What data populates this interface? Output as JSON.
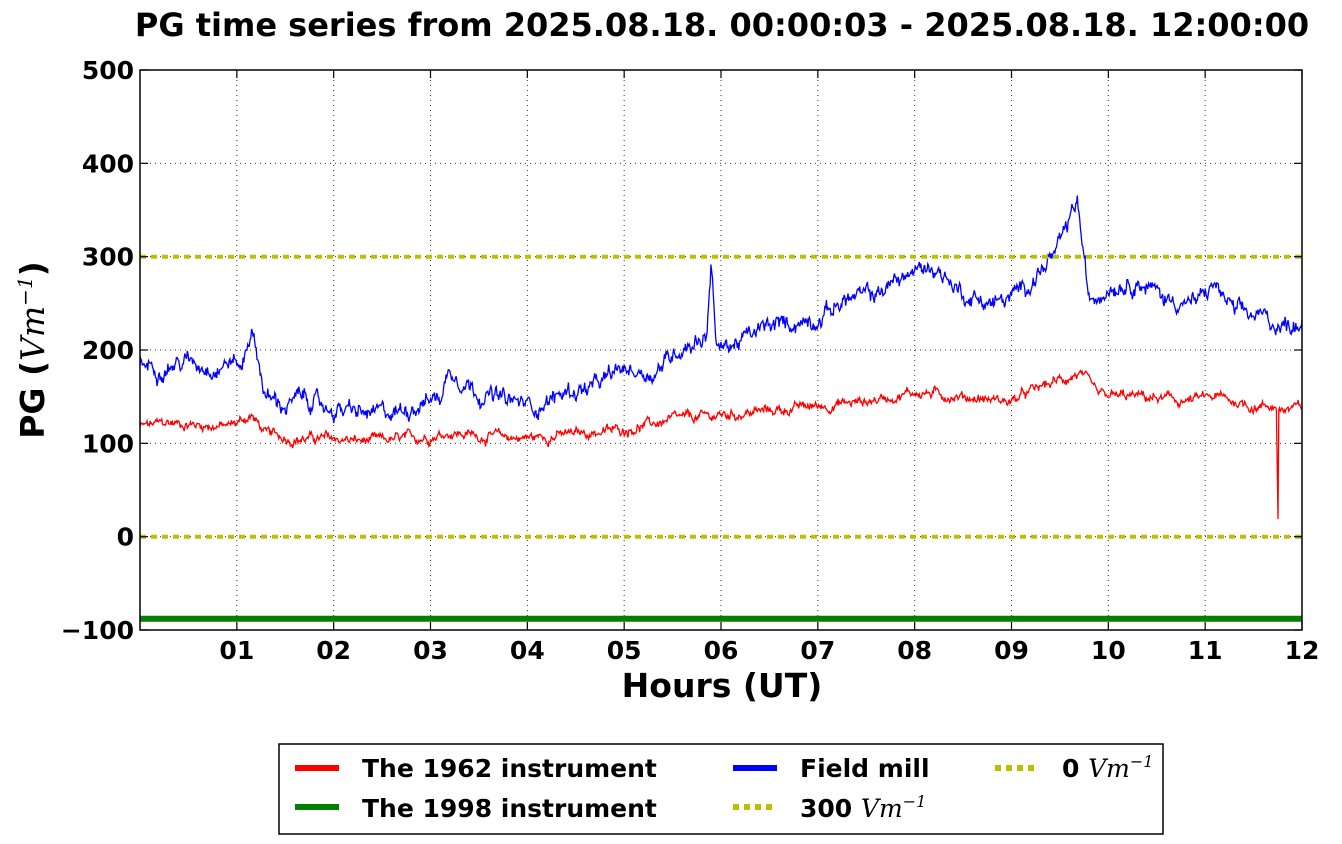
{
  "chart_data": {
    "type": "line",
    "title": "PG time series from 2025.08.18. 00:00:03 - 2025.08.18. 12:00:00",
    "xlabel": "Hours (UT)",
    "ylabel_prefix": "PG (",
    "ylabel_unit": "Vm",
    "ylabel_exp": "−1",
    "ylabel_suffix": ")",
    "xlim": [
      0,
      12
    ],
    "ylim": [
      -100,
      500
    ],
    "grid": true,
    "legend_position": "bottom-center-below",
    "x_ticks": [
      1,
      2,
      3,
      4,
      5,
      6,
      7,
      8,
      9,
      10,
      11,
      12
    ],
    "x_tick_labels": [
      "01",
      "02",
      "03",
      "04",
      "05",
      "06",
      "07",
      "08",
      "09",
      "10",
      "11",
      "12"
    ],
    "y_ticks": [
      -100,
      0,
      100,
      200,
      300,
      400,
      500
    ],
    "y_tick_labels": [
      "−100",
      "0",
      "100",
      "200",
      "300",
      "400",
      "500"
    ],
    "series": [
      {
        "name": "The 1962 instrument",
        "color": "#ff0000",
        "style": "solid",
        "noise": 6,
        "x": [
          0,
          0.3,
          0.6,
          0.9,
          1.0,
          1.15,
          1.3,
          1.6,
          2.0,
          2.3,
          2.7,
          3.0,
          3.2,
          3.5,
          4.0,
          4.5,
          5.0,
          5.5,
          6.0,
          6.5,
          7.0,
          7.5,
          8.0,
          8.5,
          9.0,
          9.3,
          9.7,
          9.9,
          10.3,
          10.8,
          11.1,
          11.5,
          11.74,
          11.75,
          11.76,
          12.0
        ],
        "values": [
          118,
          122,
          120,
          118,
          122,
          130,
          110,
          105,
          105,
          102,
          104,
          108,
          112,
          108,
          106,
          110,
          115,
          125,
          130,
          135,
          140,
          145,
          155,
          150,
          145,
          160,
          175,
          150,
          150,
          145,
          150,
          140,
          140,
          -5,
          135,
          138
        ]
      },
      {
        "name": "The 1998 instrument",
        "color": "#008000",
        "style": "solid",
        "noise": 0,
        "x": [
          0,
          12
        ],
        "values": [
          -88,
          -88
        ]
      },
      {
        "name": "Field mill",
        "color": "#0000ff",
        "style": "solid",
        "noise": 10,
        "x": [
          0,
          0.2,
          0.5,
          0.8,
          0.95,
          1.05,
          1.15,
          1.3,
          1.5,
          1.7,
          1.9,
          2.1,
          2.4,
          2.7,
          2.9,
          3.1,
          3.2,
          3.5,
          3.8,
          4.1,
          4.4,
          4.7,
          5.0,
          5.3,
          5.6,
          5.85,
          5.9,
          5.95,
          6.2,
          6.5,
          6.8,
          7.0,
          7.3,
          7.6,
          7.9,
          8.2,
          8.5,
          8.8,
          9.0,
          9.3,
          9.5,
          9.68,
          9.8,
          10.0,
          10.3,
          10.6,
          10.9,
          11.1,
          11.3,
          11.6,
          11.8,
          12.0
        ],
        "values": [
          185,
          182,
          188,
          182,
          190,
          180,
          225,
          150,
          140,
          150,
          138,
          135,
          130,
          135,
          145,
          150,
          180,
          155,
          145,
          140,
          155,
          160,
          180,
          175,
          205,
          215,
          300,
          200,
          210,
          225,
          230,
          235,
          255,
          260,
          280,
          290,
          260,
          250,
          255,
          285,
          310,
          360,
          250,
          270,
          275,
          255,
          250,
          270,
          240,
          235,
          225,
          232
        ]
      },
      {
        "name": "300 Vm",
        "label_value": "300",
        "label_unit": "Vm",
        "label_exp": "−1",
        "color": "#bfbf00",
        "style": "dotted",
        "noise": 0,
        "x": [
          0,
          12
        ],
        "values": [
          300,
          300
        ]
      },
      {
        "name": "0 Vm",
        "label_value": "0",
        "label_unit": "Vm",
        "label_exp": "−1",
        "color": "#bfbf00",
        "style": "dotted",
        "noise": 0,
        "x": [
          0,
          12
        ],
        "values": [
          0,
          0
        ]
      }
    ]
  }
}
